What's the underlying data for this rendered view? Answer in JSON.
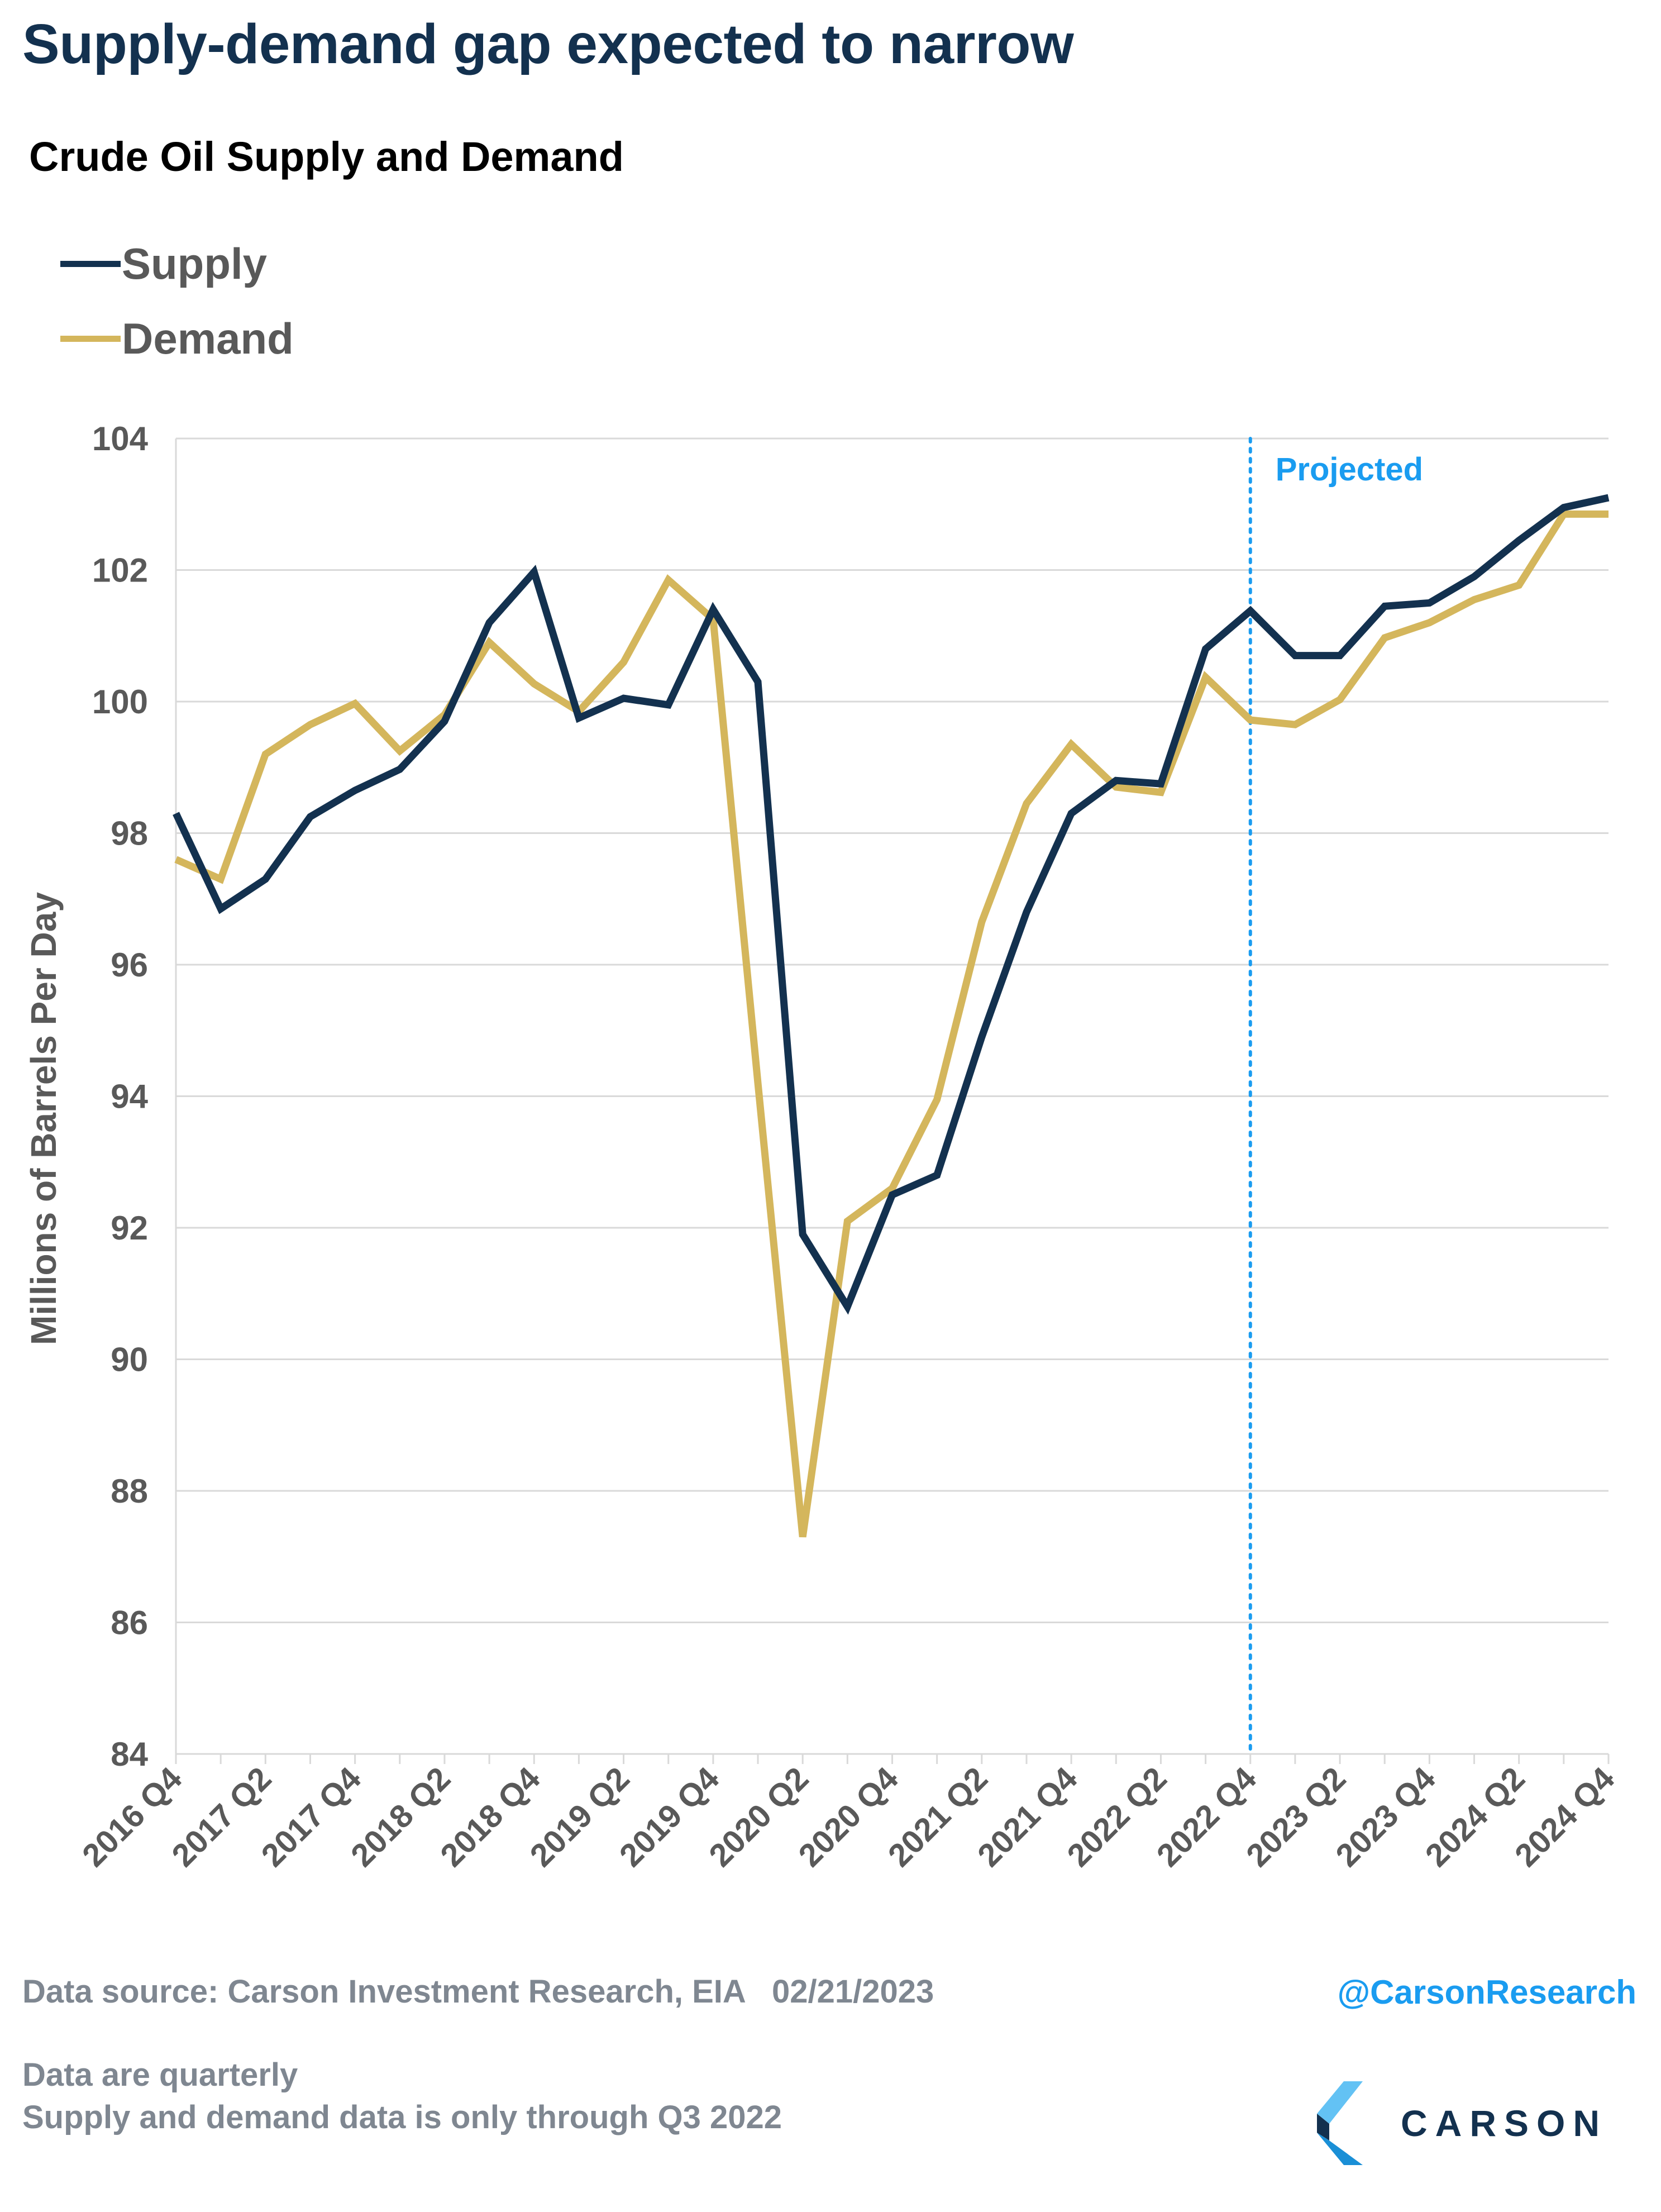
{
  "header": {
    "headline": "Supply-demand gap expected to narrow"
  },
  "footer": {
    "source": "Data source: Carson Investment Research, EIA   02/21/2023",
    "handle": "@CarsonResearch",
    "note_1": "Data are quarterly",
    "note_2": "Supply and demand data is only through Q3 2022",
    "logo_text": "CARSON"
  },
  "colors": {
    "supply": "#13314f",
    "demand": "#d4b65c",
    "projection": "#1a9cf0",
    "grid": "#d9d9d9",
    "axis_text": "#595959"
  },
  "chart_data": {
    "type": "line",
    "title": "Crude Oil Supply and Demand",
    "xlabel": "",
    "ylabel": "Millions of Barrels Per Day",
    "ylim": [
      84,
      104
    ],
    "yticks": [
      84,
      86,
      88,
      90,
      92,
      94,
      96,
      98,
      100,
      102,
      104
    ],
    "grid": "horizontal",
    "legend_placement": "top-left",
    "annotation": {
      "label": "Projected",
      "at": "2022 Q4",
      "style": "dotted vertical line"
    },
    "categories": [
      "2016 Q4",
      "2017 Q1",
      "2017 Q2",
      "2017 Q3",
      "2017 Q4",
      "2018 Q1",
      "2018 Q2",
      "2018 Q3",
      "2018 Q4",
      "2019 Q1",
      "2019 Q2",
      "2019 Q3",
      "2019 Q4",
      "2020 Q1",
      "2020 Q2",
      "2020 Q3",
      "2020 Q4",
      "2021 Q1",
      "2021 Q2",
      "2021 Q3",
      "2021 Q4",
      "2022 Q1",
      "2022 Q2",
      "2022 Q3",
      "2022 Q4",
      "2023 Q1",
      "2023 Q2",
      "2023 Q3",
      "2023 Q4",
      "2024 Q1",
      "2024 Q2",
      "2024 Q3",
      "2024 Q4"
    ],
    "tick_labels": [
      "2016 Q4",
      "2017 Q2",
      "2017 Q4",
      "2018 Q2",
      "2018 Q4",
      "2019 Q2",
      "2019 Q4",
      "2020 Q2",
      "2020 Q4",
      "2021 Q2",
      "2021 Q4",
      "2022 Q2",
      "2022 Q4",
      "2023 Q2",
      "2023 Q4",
      "2024 Q2",
      "2024 Q4"
    ],
    "series": [
      {
        "name": "Supply",
        "values": [
          98.3,
          96.85,
          97.3,
          98.25,
          98.65,
          98.97,
          99.7,
          101.2,
          101.97,
          99.75,
          100.05,
          99.95,
          101.4,
          100.3,
          91.9,
          90.8,
          92.5,
          92.8,
          94.9,
          96.8,
          98.3,
          98.8,
          98.75,
          100.8,
          101.38,
          100.7,
          100.7,
          101.45,
          101.5,
          101.9,
          102.45,
          102.95,
          103.1
        ]
      },
      {
        "name": "Demand",
        "values": [
          97.6,
          97.3,
          99.2,
          99.65,
          99.97,
          99.25,
          99.8,
          100.9,
          100.27,
          99.85,
          100.6,
          101.85,
          101.25,
          94.2,
          87.3,
          92.1,
          92.6,
          93.95,
          96.65,
          98.45,
          99.35,
          98.7,
          98.62,
          100.37,
          99.72,
          99.65,
          100.03,
          100.97,
          101.2,
          101.55,
          101.77,
          102.85,
          102.85
        ]
      }
    ]
  }
}
